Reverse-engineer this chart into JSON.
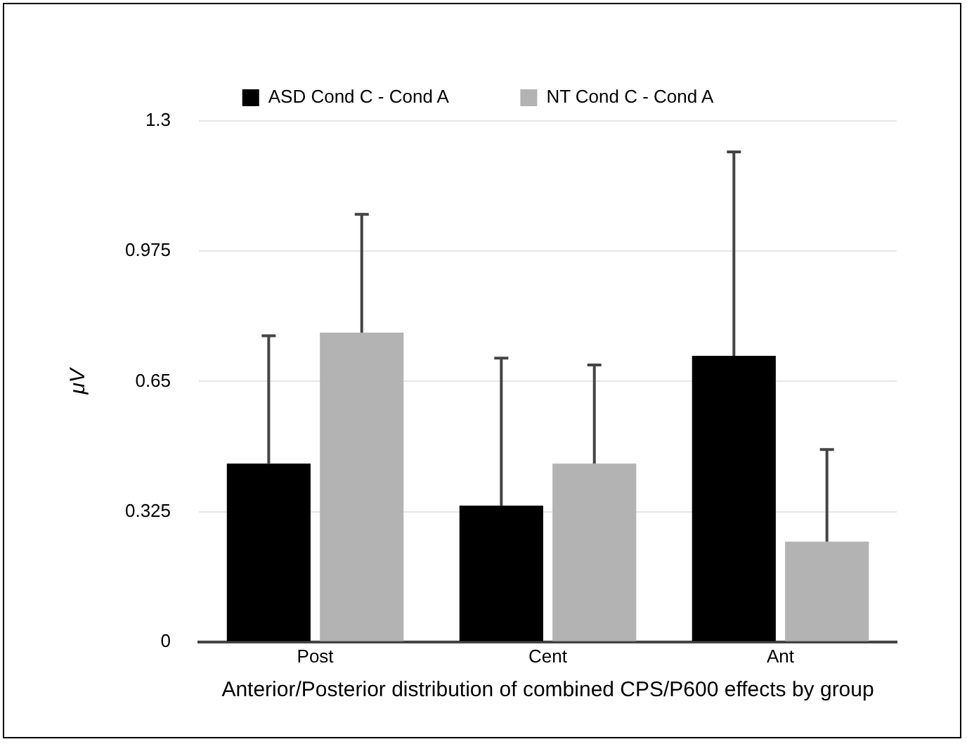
{
  "chart_data": {
    "type": "bar",
    "xlabel": "Anterior/Posterior distribution of combined CPS/P600 effects by group",
    "ylabel": "μV",
    "categories": [
      "Post",
      "Cent",
      "Ant"
    ],
    "series": [
      {
        "name": "ASD Cond C - Cond A",
        "color": "#000000",
        "values": [
          0.445,
          0.34,
          0.714
        ],
        "errors": [
          [
            0.445,
            0.764
          ],
          [
            0.34,
            0.708
          ],
          [
            0.714,
            1.223
          ]
        ]
      },
      {
        "name": "NT Cond C - Cond A",
        "color": "#b3b3b3",
        "values": [
          0.772,
          0.445,
          0.25
        ],
        "errors": [
          [
            0.772,
            1.067
          ],
          [
            0.445,
            0.691
          ],
          [
            0.25,
            0.48
          ]
        ]
      }
    ],
    "ylim": [
      0,
      1.3
    ],
    "yticks": [
      0,
      0.325,
      0.65,
      0.975,
      1.3
    ],
    "grid": "y",
    "legend": "top"
  }
}
